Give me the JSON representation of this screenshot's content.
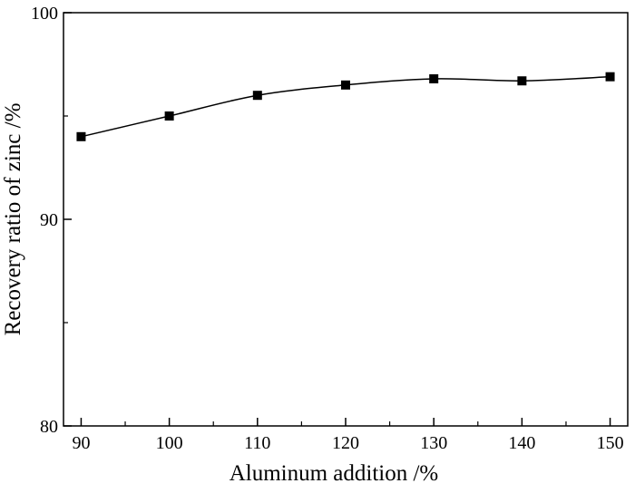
{
  "chart_data": {
    "type": "line",
    "title": "",
    "xlabel": "Aluminum addition /%",
    "ylabel": "Recovery ratio of zinc /%",
    "x": [
      90,
      100,
      110,
      120,
      130,
      140,
      150
    ],
    "series": [
      {
        "values": [
          94.0,
          95.0,
          96.0,
          96.5,
          96.8,
          96.7,
          96.9
        ],
        "color": "#000000",
        "marker": "square",
        "smooth": true
      }
    ],
    "xlim": [
      88,
      152
    ],
    "ylim": [
      80,
      100
    ],
    "x_ticks": [
      90,
      100,
      110,
      120,
      130,
      140,
      150
    ],
    "x_tick_labels": [
      "90",
      "100",
      "110",
      "120",
      "130",
      "140",
      "150"
    ],
    "y_ticks": [
      80,
      90,
      100
    ],
    "y_tick_labels": [
      "80",
      "90",
      "100"
    ],
    "y_minor_step": 5,
    "x_minor_step": 5,
    "grid": false,
    "legend": "none",
    "frame": "box"
  }
}
